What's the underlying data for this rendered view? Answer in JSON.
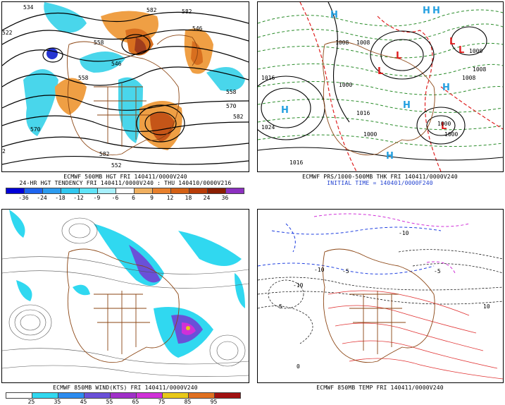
{
  "panels": {
    "p500": {
      "caption_line1": "ECMWF 500MB HGT FRI 140411/0000V240",
      "caption_line2": "24-HR HGT TENDENCY FRI 140411/0000V240 : THU 140410/0000V216",
      "contour_labels": [
        "534",
        "522",
        "582",
        "546",
        "570",
        "558",
        "546",
        "570",
        "582",
        "582",
        "552",
        "558",
        "558",
        "2",
        "582"
      ],
      "colorbar_ticks": [
        "-36",
        "-24",
        "-18",
        "-12",
        "-9",
        "-6",
        "6",
        "9",
        "12",
        "18",
        "24",
        "36"
      ],
      "colorbar_colors": [
        "#0000d8",
        "#1e64f0",
        "#2c9cf0",
        "#30c8f0",
        "#60e4f8",
        "#a8f0fc",
        "#ffffff",
        "#f0b060",
        "#e8802c",
        "#d46014",
        "#b83c08",
        "#8a1e02",
        "#8c30c0"
      ]
    },
    "p_prs": {
      "caption_line1": "ECMWF PRS/1000-500MB THK FRI 140411/0000V240",
      "caption_line2": "INITIAL TIME = 140401/0000F240",
      "pressure_labels": [
        "1016",
        "1008",
        "1000",
        "1016",
        "1000",
        "1008",
        "1000",
        "1000",
        "1024",
        "1016",
        "1000",
        "1008",
        "1008"
      ],
      "highs": [
        "H",
        "H",
        "H",
        "H",
        "H",
        "H",
        "H"
      ],
      "lows": [
        "L",
        "L",
        "L",
        "L",
        "L"
      ]
    },
    "p850wind": {
      "caption_line1": "ECMWF 850MB WIND(KTS) FRI 140411/0000V240",
      "colorbar_ticks": [
        "25",
        "35",
        "45",
        "55",
        "65",
        "75",
        "85",
        "95"
      ],
      "colorbar_colors": [
        "#ffffff",
        "#30d8f0",
        "#2c8cf0",
        "#6a50d8",
        "#a030c8",
        "#d030d8",
        "#e8c818",
        "#e07020",
        "#a01010"
      ]
    },
    "p850temp": {
      "caption_line1": "ECMWF 850MB TEMP FRI 140411/0000V240",
      "temp_labels": [
        "-10",
        "-10",
        "-5",
        "-5",
        "10",
        "-10",
        "5",
        "0"
      ]
    }
  }
}
